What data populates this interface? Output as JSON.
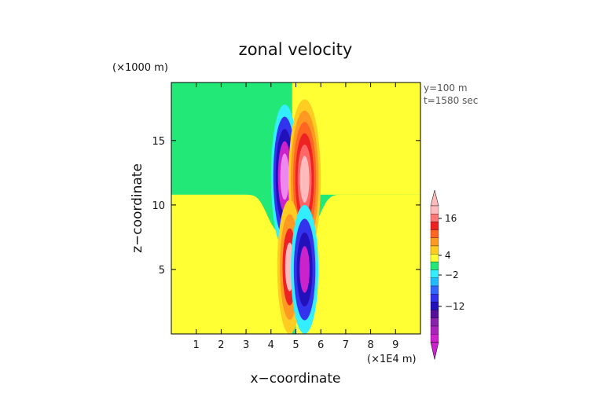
{
  "chart_data": {
    "type": "heatmap",
    "title": "zonal velocity",
    "xlabel": "x−coordinate",
    "ylabel": "z−coordinate",
    "x_unit": "(×1E4 m)",
    "y_unit": "(×1000 m)",
    "annotations": [
      "y=100 m",
      "t=1580 sec"
    ],
    "xlim": [
      0,
      10
    ],
    "ylim": [
      0,
      19.5
    ],
    "x_ticks": [
      "1",
      "2",
      "3",
      "4",
      "5",
      "6",
      "7",
      "8",
      "9"
    ],
    "y_ticks": [
      "5",
      "10",
      "15"
    ],
    "colorbar_labels": [
      "16",
      "4",
      "−2",
      "−12"
    ],
    "colors": {
      "background_low": "#ffff33",
      "background_high": "#22e877",
      "neg_light": "#33eeff",
      "neg_mid": "#3333ee",
      "neg_strong": "#cc22cc",
      "pos_light": "#ffcc22",
      "pos_mid": "#ff9922",
      "pos_strong": "#ee2222",
      "pos_peak": "#ffbbbb"
    },
    "features": [
      {
        "kind": "negative",
        "x": 4.55,
        "z": 11.8,
        "peak": -14
      },
      {
        "kind": "positive",
        "x": 5.35,
        "z": 11.0,
        "peak": 18
      },
      {
        "kind": "positive",
        "x": 4.75,
        "z": 5.5,
        "peak": 16
      },
      {
        "kind": "negative",
        "x": 5.35,
        "z": 5.0,
        "peak": -12
      }
    ]
  }
}
